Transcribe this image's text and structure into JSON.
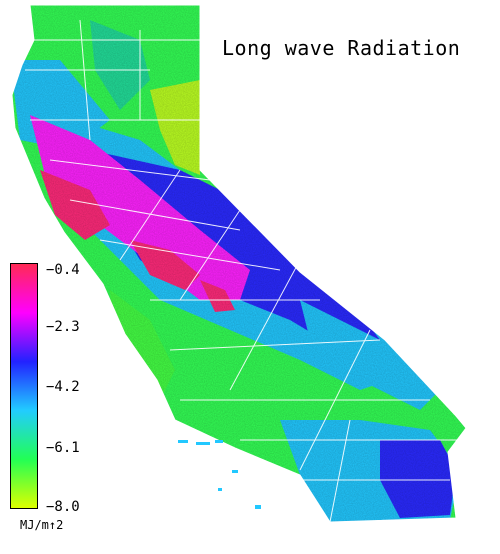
{
  "title": "Long wave Radiation",
  "legend": {
    "ticks": [
      "−0.4",
      "−2.3",
      "−4.2",
      "−6.1",
      "−8.0"
    ],
    "unit": "MJ/m↑2",
    "colors": [
      "#ff2a55",
      "#ff00ff",
      "#2222ff",
      "#22ccff",
      "#22ff55",
      "#ddff00"
    ]
  },
  "map_colors": {
    "pink": "#ff2a7a",
    "magenta": "#ff22ff",
    "blue": "#2a2aff",
    "cyan": "#22c8ff",
    "green": "#33ff55",
    "yellow_green": "#bbff22"
  }
}
